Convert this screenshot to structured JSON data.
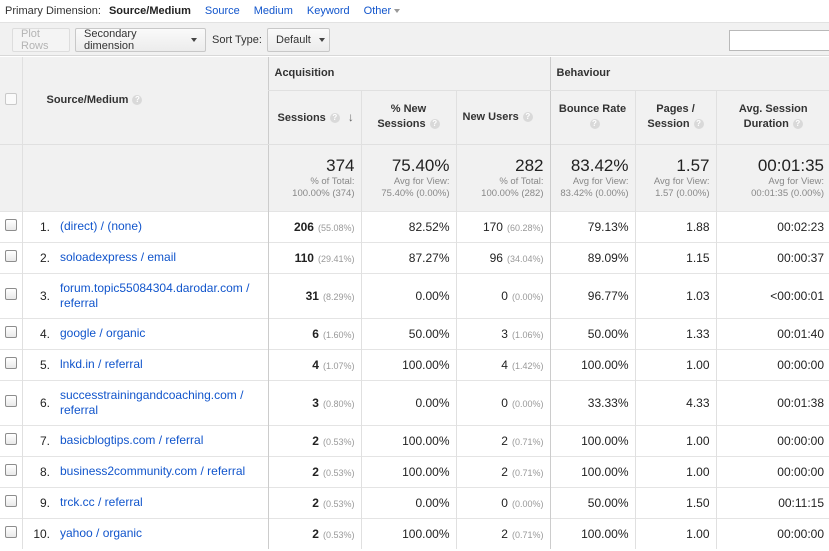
{
  "primary_dimension": {
    "label": "Primary Dimension:",
    "items": [
      {
        "label": "Source/Medium",
        "active": true
      },
      {
        "label": "Source",
        "active": false
      },
      {
        "label": "Medium",
        "active": false
      },
      {
        "label": "Keyword",
        "active": false
      },
      {
        "label": "Other",
        "active": false
      }
    ]
  },
  "toolbar": {
    "plot_rows": "Plot Rows",
    "secondary_dimension": "Secondary dimension",
    "sort_type_label": "Sort Type:",
    "sort_type_value": "Default",
    "search_value": ""
  },
  "table": {
    "dimension_header": "Source/Medium",
    "groups": {
      "acquisition": "Acquisition",
      "behaviour": "Behaviour"
    },
    "columns": {
      "sessions": "Sessions",
      "pct_new_sessions_1": "% New",
      "pct_new_sessions_2": "Sessions",
      "new_users": "New Users",
      "bounce_rate": "Bounce Rate",
      "pages_session_1": "Pages /",
      "pages_session_2": "Session",
      "avg_duration_1": "Avg. Session",
      "avg_duration_2": "Duration"
    },
    "totals": {
      "sessions": {
        "value": "374",
        "sub1": "% of Total:",
        "sub2": "100.00% (374)"
      },
      "pct_new": {
        "value": "75.40%",
        "sub1": "Avg for View:",
        "sub2": "75.40% (0.00%)"
      },
      "new_users": {
        "value": "282",
        "sub1": "% of Total:",
        "sub2": "100.00% (282)"
      },
      "bounce_rate": {
        "value": "83.42%",
        "sub1": "Avg for View:",
        "sub2": "83.42% (0.00%)"
      },
      "pages": {
        "value": "1.57",
        "sub1": "Avg for View:",
        "sub2": "1.57 (0.00%)"
      },
      "duration": {
        "value": "00:01:35",
        "sub1": "Avg for View:",
        "sub2": "00:01:35 (0.00%)"
      }
    },
    "rows": [
      {
        "index": "1.",
        "name1": "(direct) / (none)",
        "name2": "",
        "sessions": "206",
        "sessions_pct": "(55.08%)",
        "pct_new": "82.52%",
        "new_users": "170",
        "new_users_pct": "(60.28%)",
        "bounce": "79.13%",
        "pages": "1.88",
        "duration": "00:02:23"
      },
      {
        "index": "2.",
        "name1": "soloadexpress / email",
        "name2": "",
        "sessions": "110",
        "sessions_pct": "(29.41%)",
        "pct_new": "87.27%",
        "new_users": "96",
        "new_users_pct": "(34.04%)",
        "bounce": "89.09%",
        "pages": "1.15",
        "duration": "00:00:37"
      },
      {
        "index": "3.",
        "name1": "forum.topic55084304.darodar.com /",
        "name2": "referral",
        "sessions": "31",
        "sessions_pct": "(8.29%)",
        "pct_new": "0.00%",
        "new_users": "0",
        "new_users_pct": "(0.00%)",
        "bounce": "96.77%",
        "pages": "1.03",
        "duration": "<00:00:01"
      },
      {
        "index": "4.",
        "name1": "google / organic",
        "name2": "",
        "sessions": "6",
        "sessions_pct": "(1.60%)",
        "pct_new": "50.00%",
        "new_users": "3",
        "new_users_pct": "(1.06%)",
        "bounce": "50.00%",
        "pages": "1.33",
        "duration": "00:01:40"
      },
      {
        "index": "5.",
        "name1": "lnkd.in / referral",
        "name2": "",
        "sessions": "4",
        "sessions_pct": "(1.07%)",
        "pct_new": "100.00%",
        "new_users": "4",
        "new_users_pct": "(1.42%)",
        "bounce": "100.00%",
        "pages": "1.00",
        "duration": "00:00:00"
      },
      {
        "index": "6.",
        "name1": "successtrainingandcoaching.com /",
        "name2": "referral",
        "sessions": "3",
        "sessions_pct": "(0.80%)",
        "pct_new": "0.00%",
        "new_users": "0",
        "new_users_pct": "(0.00%)",
        "bounce": "33.33%",
        "pages": "4.33",
        "duration": "00:01:38"
      },
      {
        "index": "7.",
        "name1": "basicblogtips.com / referral",
        "name2": "",
        "sessions": "2",
        "sessions_pct": "(0.53%)",
        "pct_new": "100.00%",
        "new_users": "2",
        "new_users_pct": "(0.71%)",
        "bounce": "100.00%",
        "pages": "1.00",
        "duration": "00:00:00"
      },
      {
        "index": "8.",
        "name1": "business2community.com / referral",
        "name2": "",
        "sessions": "2",
        "sessions_pct": "(0.53%)",
        "pct_new": "100.00%",
        "new_users": "2",
        "new_users_pct": "(0.71%)",
        "bounce": "100.00%",
        "pages": "1.00",
        "duration": "00:00:00"
      },
      {
        "index": "9.",
        "name1": "trck.cc / referral",
        "name2": "",
        "sessions": "2",
        "sessions_pct": "(0.53%)",
        "pct_new": "0.00%",
        "new_users": "0",
        "new_users_pct": "(0.00%)",
        "bounce": "50.00%",
        "pages": "1.50",
        "duration": "00:11:15"
      },
      {
        "index": "10.",
        "name1": "yahoo / organic",
        "name2": "",
        "sessions": "2",
        "sessions_pct": "(0.53%)",
        "pct_new": "100.00%",
        "new_users": "2",
        "new_users_pct": "(0.71%)",
        "bounce": "100.00%",
        "pages": "1.00",
        "duration": "00:00:00"
      }
    ]
  },
  "icons": {
    "help": "help-icon",
    "sort": "sort-descending-icon",
    "dropdown": "chevron-down-icon"
  },
  "colors": {
    "link": "#1155cc",
    "header_bg": "#f1f1f1",
    "muted": "#999999"
  }
}
